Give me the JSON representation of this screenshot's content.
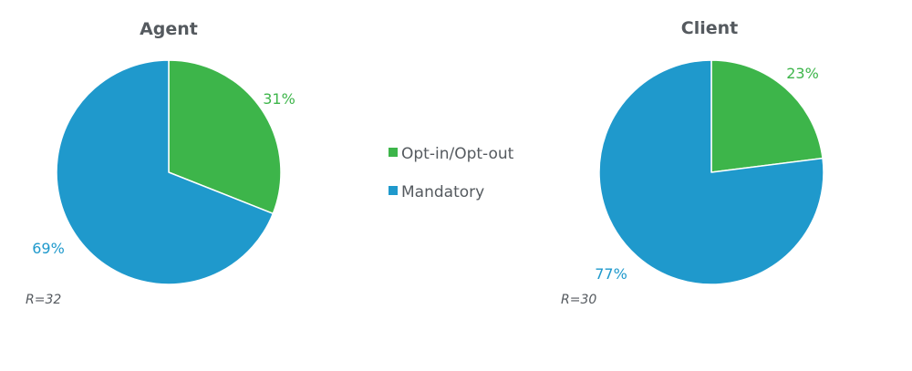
{
  "chart_data": [
    {
      "type": "pie",
      "title": "Agent",
      "note": "R=32",
      "categories": [
        "Opt-in/Opt-out",
        "Mandatory"
      ],
      "values": [
        31,
        69
      ],
      "labels": [
        "31%",
        "69%"
      ],
      "colors": [
        "#3db54a",
        "#1f99cc"
      ],
      "start_angle_deg": 0,
      "direction": "clockwise"
    },
    {
      "type": "pie",
      "title": "Client",
      "note": "R=30",
      "categories": [
        "Opt-in/Opt-out",
        "Mandatory"
      ],
      "values": [
        23,
        77
      ],
      "labels": [
        "23%",
        "77%"
      ],
      "colors": [
        "#3db54a",
        "#1f99cc"
      ],
      "start_angle_deg": 0,
      "direction": "clockwise"
    }
  ],
  "legend": {
    "items": [
      {
        "label": "Opt-in/Opt-out",
        "color": "#3db54a"
      },
      {
        "label": "Mandatory",
        "color": "#1f99cc"
      }
    ],
    "placement": "center"
  }
}
